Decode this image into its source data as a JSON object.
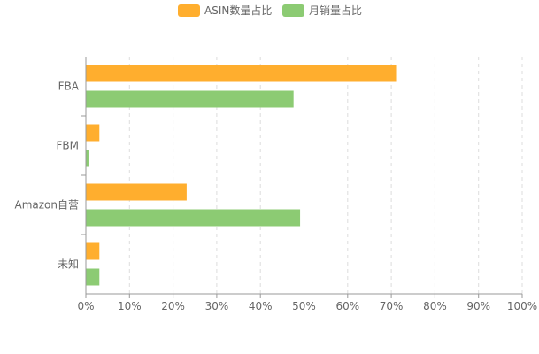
{
  "chart_data": {
    "type": "bar",
    "orientation": "horizontal",
    "categories": [
      "FBA",
      "FBM",
      "Amazon自营",
      "未知"
    ],
    "series": [
      {
        "name": "ASIN数量占比",
        "color": "#FFAE2E",
        "values": [
          71,
          3,
          23,
          3
        ]
      },
      {
        "name": "月销量占比",
        "color": "#8CCB73",
        "values": [
          47.5,
          0.5,
          49,
          3
        ]
      }
    ],
    "xlim": [
      0,
      100
    ],
    "x_ticks": [
      "0%",
      "10%",
      "20%",
      "30%",
      "40%",
      "50%",
      "60%",
      "70%",
      "80%",
      "90%",
      "100%"
    ],
    "grid": "vertical dashed",
    "legend_position": "top-center"
  }
}
